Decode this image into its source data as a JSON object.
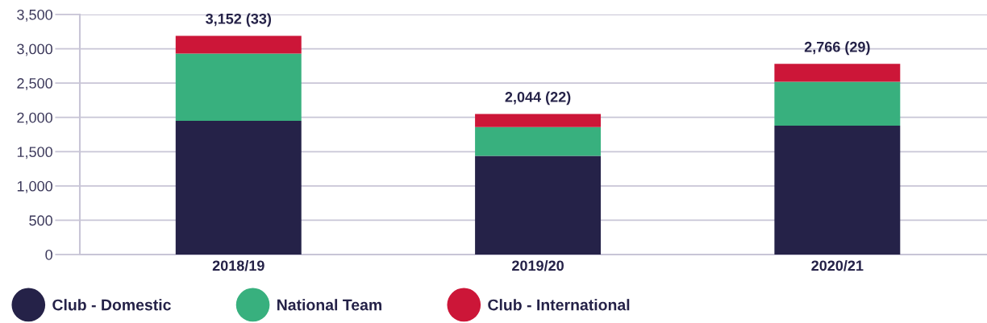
{
  "chart_data": {
    "type": "bar",
    "stacked": true,
    "categories": [
      "2018/19",
      "2019/20",
      "2020/21"
    ],
    "series": [
      {
        "name": "Club - Domestic",
        "color": "#252248",
        "values": [
          1950,
          1440,
          1880
        ]
      },
      {
        "name": "National Team",
        "color": "#38b07e",
        "values": [
          980,
          420,
          640
        ]
      },
      {
        "name": "Club - International",
        "color": "#cc1638",
        "values": [
          260,
          190,
          260
        ]
      }
    ],
    "totals": [
      "3,152 (33)",
      "2,044 (22)",
      "2,766 (29)"
    ],
    "ylim": [
      0,
      3500
    ],
    "yticks": [
      {
        "value": 0,
        "label": "0"
      },
      {
        "value": 500,
        "label": "500"
      },
      {
        "value": 1000,
        "label": "1,000"
      },
      {
        "value": 1500,
        "label": "1,500"
      },
      {
        "value": 2000,
        "label": "2,000"
      },
      {
        "value": 2500,
        "label": "2,500"
      },
      {
        "value": 3000,
        "label": "3,000"
      },
      {
        "value": 3500,
        "label": "3,500"
      }
    ],
    "grid": "y",
    "legend": "bottom left"
  }
}
